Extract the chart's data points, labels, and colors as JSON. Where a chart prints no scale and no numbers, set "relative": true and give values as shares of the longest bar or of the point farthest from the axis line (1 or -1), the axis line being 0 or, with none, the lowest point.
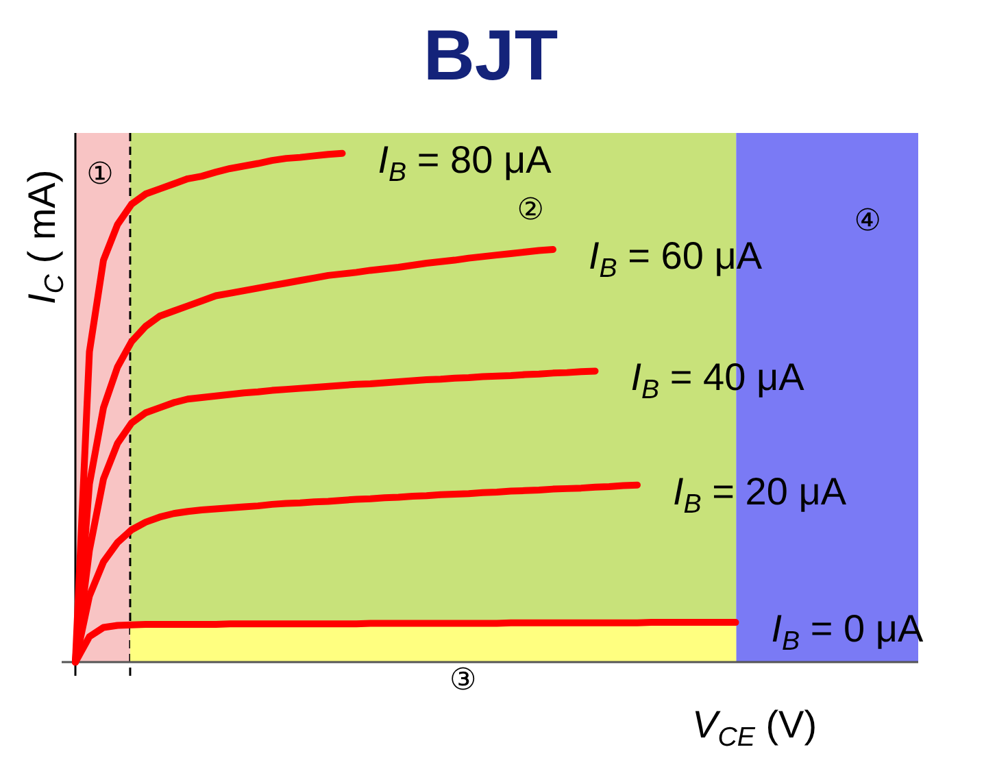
{
  "chart_data": {
    "type": "line",
    "title": "BJT",
    "xlabel": "V$_{CE}$ (V)",
    "ylabel": "I$_{C}$ ( mA)",
    "relative": true,
    "line_style": "solid",
    "categories": [
      null,
      null,
      null,
      null,
      null,
      null,
      null,
      null,
      null,
      null,
      null,
      null,
      null,
      null,
      null,
      null,
      null,
      null,
      null,
      null,
      null,
      null,
      null,
      null,
      null,
      null,
      null,
      null,
      null,
      null,
      null,
      null,
      null,
      null,
      null,
      null,
      null,
      null,
      null,
      null,
      null,
      null,
      null,
      null,
      null,
      null,
      null,
      null,
      null,
      null,
      null,
      null,
      null,
      null,
      null,
      null,
      null,
      null,
      null,
      null,
      null
    ],
    "annotations": [
      "①",
      "②",
      "④"
    ],
    "bands": [
      {
        "axis": "y",
        "from": 0,
        "to": 0.075,
        "label": "③",
        "color": "#ffff80"
      }
    ],
    "series": [
      {
        "name": "I$_{B}$ = 80 μA",
        "color": "#ff0000",
        "values": [
          0,
          0.61,
          0.79,
          0.86,
          0.9,
          0.92,
          0.93,
          0.94,
          0.95,
          0.955,
          0.963,
          0.97,
          0.975,
          0.98,
          0.986,
          0.99,
          0.992,
          0.995,
          0.998,
          1,
          null,
          null,
          null,
          null,
          null,
          null,
          null,
          null,
          null,
          null,
          null,
          null,
          null,
          null,
          null,
          null,
          null,
          null,
          null,
          null,
          null,
          null,
          null,
          null,
          null,
          null,
          null,
          null,
          null,
          null,
          null,
          null,
          null,
          null,
          null,
          null,
          null,
          null,
          null,
          null,
          null
        ]
      },
      {
        "name": "I$_{B}$ = 60 μA",
        "color": "#ff0000",
        "values": [
          0,
          0.35,
          0.5,
          0.58,
          0.63,
          0.66,
          0.68,
          0.69,
          0.7,
          0.71,
          0.72,
          0.725,
          0.73,
          0.735,
          0.74,
          0.745,
          0.75,
          0.755,
          0.76,
          0.763,
          0.766,
          0.77,
          0.773,
          0.776,
          0.78,
          0.784,
          0.787,
          0.79,
          0.794,
          0.797,
          0.8,
          0.803,
          0.806,
          0.809,
          0.811,
          null,
          null,
          null,
          null,
          null,
          null,
          null,
          null,
          null,
          null,
          null,
          null,
          null,
          null,
          null,
          null,
          null,
          null,
          null,
          null,
          null,
          null,
          null,
          null,
          null,
          null
        ]
      },
      {
        "name": "I$_{B}$ = 40 μA",
        "color": "#ff0000",
        "values": [
          0,
          0.22,
          0.36,
          0.43,
          0.47,
          0.49,
          0.5,
          0.51,
          0.517,
          0.52,
          0.523,
          0.526,
          0.529,
          0.531,
          0.534,
          0.536,
          0.538,
          0.54,
          0.542,
          0.544,
          0.546,
          0.547,
          0.549,
          0.551,
          0.553,
          0.555,
          0.556,
          0.558,
          0.559,
          0.561,
          0.562,
          0.563,
          0.565,
          0.566,
          0.568,
          0.569,
          0.571,
          0.572,
          null,
          null,
          null,
          null,
          null,
          null,
          null,
          null,
          null,
          null,
          null,
          null,
          null,
          null,
          null,
          null,
          null,
          null,
          null,
          null,
          null,
          null,
          null
        ]
      },
      {
        "name": "I$_{B}$ = 20 μA",
        "color": "#ff0000",
        "values": [
          0,
          0.13,
          0.197,
          0.235,
          0.26,
          0.275,
          0.285,
          0.292,
          0.296,
          0.299,
          0.301,
          0.303,
          0.305,
          0.307,
          0.31,
          0.312,
          0.313,
          0.315,
          0.316,
          0.318,
          0.32,
          0.321,
          0.323,
          0.324,
          0.326,
          0.327,
          0.329,
          0.33,
          0.331,
          0.333,
          0.334,
          0.336,
          0.337,
          0.338,
          0.34,
          0.341,
          0.342,
          0.344,
          0.345,
          0.347,
          0.348,
          null,
          null,
          null,
          null,
          null,
          null,
          null,
          null,
          null,
          null,
          null,
          null,
          null,
          null,
          null,
          null,
          null,
          null,
          null,
          null
        ]
      },
      {
        "name": "I$_{B}$ = 0 μA",
        "color": "#ff0000",
        "values": [
          0,
          0.05,
          0.068,
          0.072,
          0.073,
          0.074,
          0.074,
          0.074,
          0.074,
          0.074,
          0.074,
          0.075,
          0.075,
          0.075,
          0.075,
          0.075,
          0.075,
          0.075,
          0.075,
          0.075,
          0.075,
          0.076,
          0.076,
          0.076,
          0.076,
          0.076,
          0.076,
          0.076,
          0.076,
          0.076,
          0.076,
          0.077,
          0.077,
          0.077,
          0.077,
          0.077,
          0.077,
          0.077,
          0.077,
          0.077,
          0.077,
          0.078,
          0.078,
          0.078,
          0.078,
          0.078,
          0.078,
          0.078,
          null,
          null,
          null,
          null,
          null,
          null,
          null,
          null,
          null,
          null,
          null,
          null,
          null
        ]
      }
    ]
  }
}
